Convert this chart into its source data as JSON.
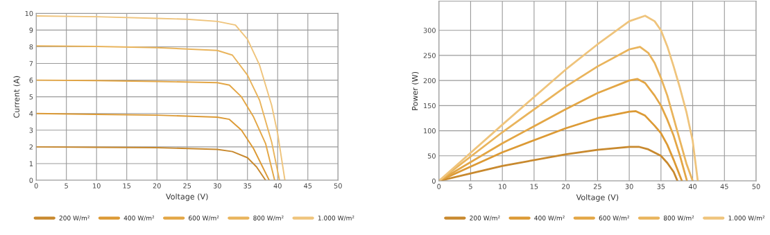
{
  "chart_data": [
    {
      "type": "line",
      "xlabel": "Voltage (V)",
      "ylabel": "Current (A)",
      "xlim": [
        0,
        50
      ],
      "ylim": [
        0,
        10
      ],
      "xticks": [
        0,
        5,
        10,
        15,
        20,
        25,
        30,
        35,
        40,
        45,
        50
      ],
      "yticks": [
        0,
        1,
        2,
        3,
        4,
        5,
        6,
        7,
        8,
        9,
        10
      ],
      "grid": true,
      "legend": "bottom",
      "marker": "none",
      "line_style": "solid",
      "series": [
        {
          "name": "200 W/m²",
          "color": "#c8892e",
          "x": [
            0,
            10,
            20,
            30,
            32.5,
            35,
            36.5,
            38
          ],
          "values": [
            2.0,
            1.97,
            1.95,
            1.85,
            1.72,
            1.35,
            0.8,
            0
          ]
        },
        {
          "name": "400 W/m²",
          "color": "#dc9a35",
          "x": [
            0,
            10,
            20,
            30,
            32,
            34,
            36,
            37.5,
            38.6
          ],
          "values": [
            4.0,
            3.95,
            3.9,
            3.78,
            3.65,
            3.0,
            1.9,
            0.8,
            0
          ]
        },
        {
          "name": "600 W/m²",
          "color": "#e3a645",
          "x": [
            0,
            10,
            20,
            30,
            32,
            34,
            36,
            38,
            39.5
          ],
          "values": [
            6.0,
            5.97,
            5.92,
            5.85,
            5.7,
            5.0,
            3.8,
            2.2,
            0
          ]
        },
        {
          "name": "800 W/m²",
          "color": "#e9b45c",
          "x": [
            0,
            10,
            20,
            30,
            32.5,
            35,
            37,
            39,
            40.3
          ],
          "values": [
            8.05,
            8.02,
            7.95,
            7.78,
            7.5,
            6.3,
            4.8,
            2.3,
            0
          ]
        },
        {
          "name": "1.000 W/m²",
          "color": "#efc47c",
          "x": [
            0,
            10,
            20,
            25,
            30,
            33,
            35,
            37,
            39,
            40,
            41.2
          ],
          "values": [
            9.85,
            9.8,
            9.7,
            9.65,
            9.52,
            9.3,
            8.45,
            6.9,
            4.5,
            2.8,
            0
          ]
        }
      ]
    },
    {
      "type": "line",
      "xlabel": "Voltage (V)",
      "ylabel": "Power (W)",
      "xlim": [
        0,
        50
      ],
      "ylim": [
        0,
        358
      ],
      "xticks": [
        0,
        5,
        10,
        15,
        20,
        25,
        30,
        35,
        40,
        45,
        50
      ],
      "yticks": [
        0,
        50,
        100,
        150,
        200,
        250,
        300
      ],
      "grid": true,
      "legend": "bottom",
      "marker": "none",
      "line_style": "solid",
      "series": [
        {
          "name": "200 W/m²",
          "color": "#c8892e",
          "x": [
            0,
            10,
            20,
            25,
            30,
            31.5,
            33,
            35,
            36,
            37,
            37.6
          ],
          "values": [
            0,
            30,
            53,
            62,
            68,
            68,
            63,
            50,
            36,
            18,
            0
          ]
        },
        {
          "name": "400 W/m²",
          "color": "#dc9a35",
          "x": [
            0,
            10,
            20,
            25,
            30,
            31,
            32.5,
            34,
            35,
            36,
            37,
            38.3
          ],
          "values": [
            0,
            57,
            105,
            125,
            138,
            139,
            130,
            110,
            95,
            72,
            42,
            0
          ]
        },
        {
          "name": "600 W/m²",
          "color": "#e3a645",
          "x": [
            0,
            10,
            20,
            25,
            30,
            31.3,
            32.5,
            34,
            35,
            36,
            37,
            38,
            39.1
          ],
          "values": [
            0,
            75,
            143,
            175,
            200,
            203,
            195,
            170,
            150,
            122,
            90,
            50,
            0
          ]
        },
        {
          "name": "800 W/m²",
          "color": "#e9b45c",
          "x": [
            0,
            10,
            20,
            25,
            30,
            31.7,
            33,
            34,
            35,
            36,
            37,
            38,
            39,
            40
          ],
          "values": [
            0,
            97,
            188,
            228,
            262,
            267,
            255,
            235,
            205,
            170,
            125,
            80,
            35,
            0
          ]
        },
        {
          "name": "1.000 W/m²",
          "color": "#efc47c",
          "x": [
            0,
            10,
            20,
            25,
            30,
            32.5,
            34,
            35,
            36,
            37,
            38,
            39,
            40,
            40.8
          ],
          "values": [
            0,
            112,
            222,
            272,
            318,
            329,
            318,
            300,
            268,
            228,
            185,
            138,
            80,
            0
          ]
        }
      ]
    }
  ]
}
